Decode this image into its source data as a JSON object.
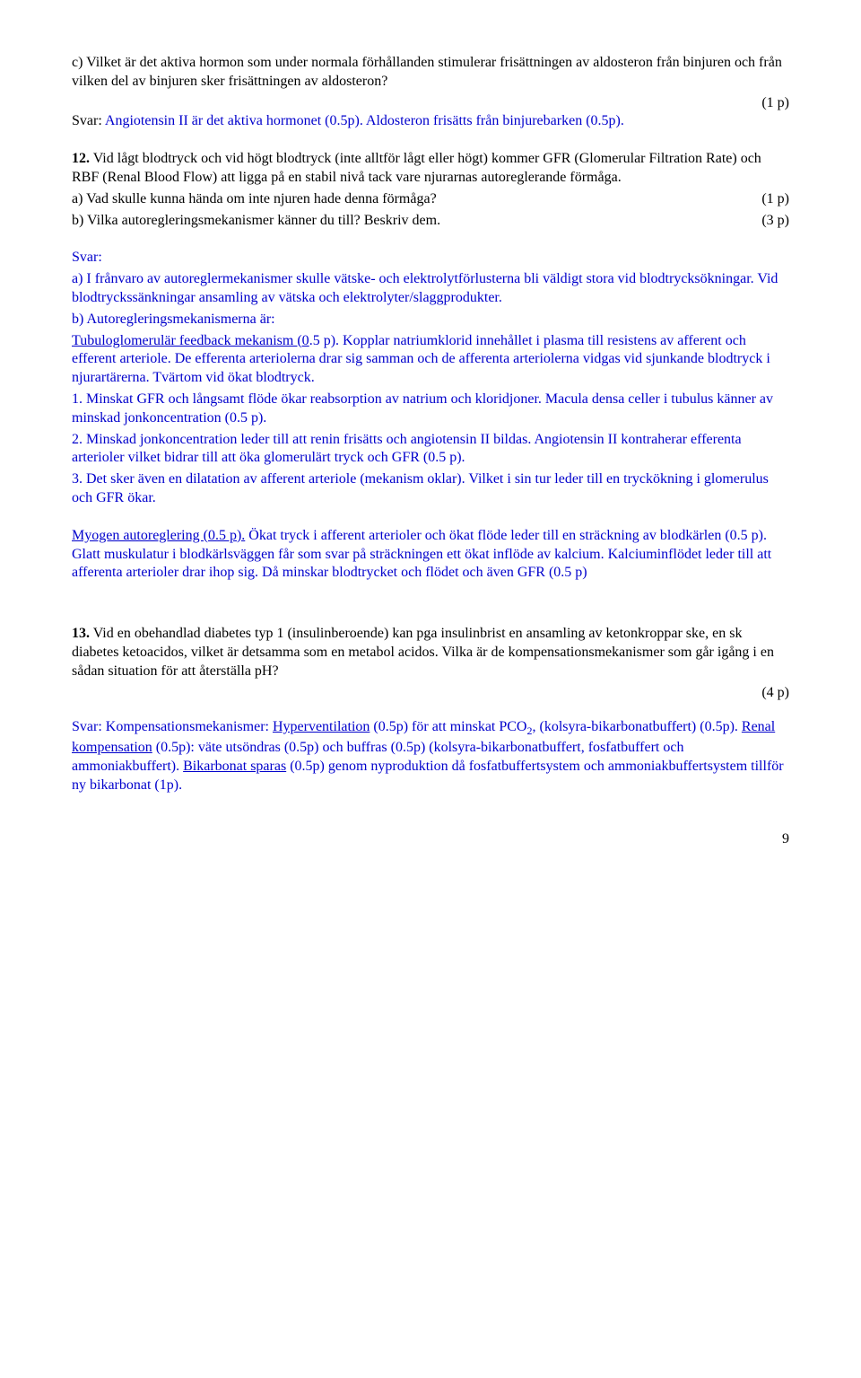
{
  "q11c": {
    "text": "c) Vilket är det aktiva hormon som under normala förhållanden stimulerar frisättningen av aldosteron från binjuren och från vilken del av binjuren sker frisättningen av aldosteron?",
    "points": "(1 p)",
    "answer_prefix": "Svar: ",
    "answer": "Angiotensin II är det aktiva hormonet (0.5p). Aldosteron frisätts från binjurebarken (0.5p)."
  },
  "q12": {
    "num": "12.",
    "text": " Vid lågt blodtryck och vid högt blodtryck (inte alltför lågt eller högt) kommer GFR (Glomerular Filtration Rate) och RBF (Renal Blood Flow) att ligga på en stabil nivå tack vare njurarnas autoreglerande förmåga.",
    "a": "a) Vad skulle kunna hända om inte njuren hade denna förmåga?",
    "a_pts": "(1 p)",
    "b": "b) Vilka autoregleringsmekanismer känner du till? Beskriv dem.",
    "b_pts": "(3 p)",
    "svar_label": "Svar:",
    "ans_a": "a) I frånvaro av autoreglermekanismer skulle vätske- och elektrolytförlusterna bli väldigt stora vid blodtrycksökningar. Vid blodtryckssänkningar ansamling av vätska och elektrolyter/slaggprodukter.",
    "ans_b_label": "b) Autoregleringsmekanismerna är:",
    "tubulo_label": "Tubuloglomerulär feedback mekanism (0",
    "tubulo_rest": ".5 p). Kopplar natriumklorid innehållet i plasma till resistens av afferent och efferent arteriole.",
    "tubulo_extra": " De efferenta arteriolerna drar sig samman och de afferenta arteriolerna vidgas vid sjunkande blodtryck i njurartärerna. Tvärtom vid ökat blodtryck.",
    "p1": "1. Minskat GFR och långsamt flöde ökar reabsorption av natrium och kloridjoner. Macula densa celler i tubulus känner av minskad jonkoncentration (0.5 p).",
    "p2": "2. Minskad jonkoncentration leder till att renin frisätts och angiotensin II bildas. Angiotensin II kontraherar efferenta arterioler vilket bidrar till att öka glomerulärt tryck och GFR (0.5 p).",
    "p3": "3. Det sker även en dilatation av afferent arteriole (mekanism oklar). Vilket i sin tur leder till en tryckökning i glomerulus och GFR ökar.",
    "myo_label": "Myogen autoreglering (0.5 p).",
    "myo_s1": " Ökat tryck i afferent arterioler och ökat flöde leder till en sträckning av blodkärlen (0.5 p).",
    "myo_s2": " Glatt muskulatur i blodkärlsväggen får som svar på sträckningen ett ökat inflöde av kalcium.",
    "myo_s3": " Kalciuminflödet leder till att afferenta arterioler drar ihop sig.",
    "myo_s4": " Då minskar blodtrycket och flödet och även GFR (0.5 p)"
  },
  "q13": {
    "num": "13.",
    "text": " Vid en obehandlad diabetes typ 1 (insulinberoende) kan pga insulinbrist en ansamling av ketonkroppar ske, en sk diabetes ketoacidos, vilket är detsamma som en metabol acidos. Vilka är de kompensationsmekanismer som går igång i en sådan situation för att återställa pH?",
    "points": "(4 p)",
    "answer_prefix": "Svar: Kompensationsmekanismer: ",
    "hyper": "Hyperventilation",
    "a1": " (0.5p) för att minskat PCO",
    "sub2": "2",
    "a1b": ", (kolsyra-bikarbonatbuffert) (0.5p). ",
    "renal": "Renal kompensation",
    "a2": " (0.5p): väte utsöndras (0.5p) och buffras (0.5p) (kolsyra-bikarbonatbuffert, fosfatbuffert och ammoniakbuffert). ",
    "bikarb": "Bikarbonat sparas",
    "a3": " (0.5p) genom nyproduktion då fosfatbuffertsystem och ammoniakbuffertsystem tillför ny bikarbonat (1p)."
  },
  "page_number": "9"
}
